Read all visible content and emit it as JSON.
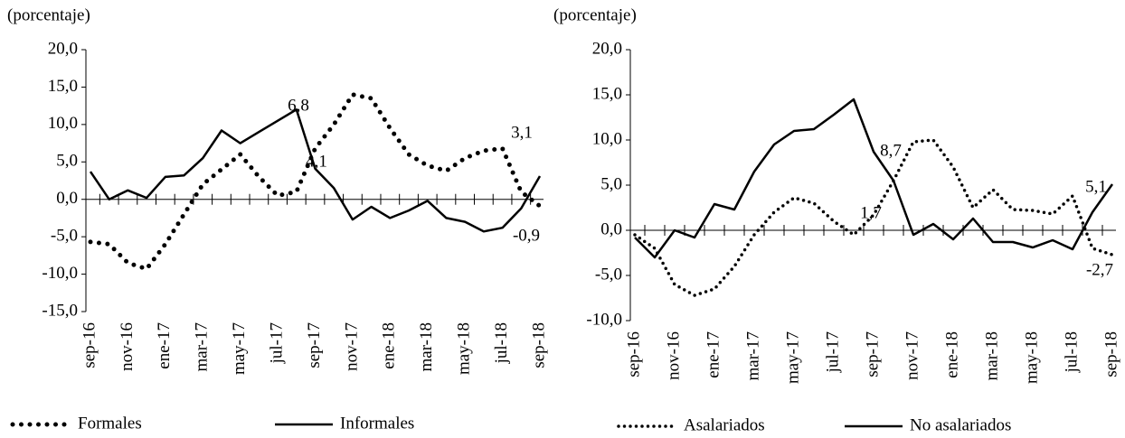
{
  "chart_data": [
    {
      "type": "line",
      "y_label": "(porcentaje)",
      "categories": [
        "sep-16",
        null,
        "nov-16",
        null,
        "ene-17",
        null,
        "mar-17",
        null,
        "may-17",
        null,
        "jul-17",
        null,
        "sep-17",
        null,
        "nov-17",
        null,
        "ene-18",
        null,
        "mar-18",
        null,
        "may-18",
        null,
        "jul-18",
        null,
        "sep-18"
      ],
      "ylim": [
        -15,
        20
      ],
      "yticks": [
        {
          "value": -15,
          "label": "-15,0"
        },
        {
          "value": -10,
          "label": "-10,0"
        },
        {
          "value": -5,
          "label": "-5,0"
        },
        {
          "value": 0,
          "label": "0,0"
        },
        {
          "value": 5,
          "label": "5,0"
        },
        {
          "value": 10,
          "label": "10,0"
        },
        {
          "value": 15,
          "label": "15,0"
        },
        {
          "value": 20,
          "label": "20,0"
        }
      ],
      "series": [
        {
          "name": "Formales",
          "color": "#000000",
          "dash": "dotted",
          "values": [
            -5.7,
            -6.0,
            -8.5,
            -9.3,
            -6.0,
            -2.0,
            2.0,
            4.0,
            6.0,
            3.0,
            0.5,
            1.0,
            6.8,
            10.0,
            14.0,
            13.5,
            9.5,
            6.0,
            4.5,
            3.8,
            5.5,
            6.5,
            6.8,
            1.0,
            -0.9
          ]
        },
        {
          "name": "Informales",
          "color": "#000000",
          "dash": "solid",
          "values": [
            3.7,
            0.0,
            1.2,
            0.2,
            3.0,
            3.2,
            5.5,
            9.2,
            7.5,
            9.0,
            10.5,
            12.0,
            4.1,
            1.5,
            -2.7,
            -1.0,
            -2.5,
            -1.5,
            -0.2,
            -2.5,
            -3.0,
            -4.3,
            -3.8,
            -1.2,
            3.1
          ]
        }
      ],
      "annotations": [
        "6,8",
        "4,1",
        "3,1",
        "-0,9"
      ]
    },
    {
      "type": "line",
      "y_label": "(porcentaje)",
      "categories": [
        "sep-16",
        null,
        "nov-16",
        null,
        "ene-17",
        null,
        "mar-17",
        null,
        "may-17",
        null,
        "jul-17",
        null,
        "sep-17",
        null,
        "nov-17",
        null,
        "ene-18",
        null,
        "mar-18",
        null,
        "may-18",
        null,
        "jul-18",
        null,
        "sep-18"
      ],
      "ylim": [
        -10,
        20
      ],
      "yticks": [
        {
          "value": -10,
          "label": "-10,0"
        },
        {
          "value": -5,
          "label": "-5,0"
        },
        {
          "value": 0,
          "label": "0,0"
        },
        {
          "value": 5,
          "label": "5,0"
        },
        {
          "value": 10,
          "label": "10,0"
        },
        {
          "value": 15,
          "label": "15,0"
        },
        {
          "value": 20,
          "label": "20,0"
        }
      ],
      "series": [
        {
          "name": "Asalariados",
          "color": "#000000",
          "dash": "dotted",
          "values": [
            -0.5,
            -2.0,
            -6.0,
            -7.2,
            -6.5,
            -4.0,
            -0.5,
            2.0,
            3.6,
            3.0,
            1.0,
            -0.5,
            1.7,
            5.5,
            9.8,
            10.0,
            7.0,
            2.5,
            4.5,
            2.3,
            2.2,
            1.8,
            3.8,
            -2.0,
            -2.7
          ]
        },
        {
          "name": "No asalariados",
          "color": "#000000",
          "dash": "solid",
          "values": [
            -0.8,
            -3.0,
            0.0,
            -0.8,
            2.9,
            2.3,
            6.5,
            9.5,
            11.0,
            11.2,
            12.8,
            14.5,
            8.7,
            5.5,
            -0.5,
            0.7,
            -1.0,
            1.3,
            -1.3,
            -1.3,
            -1.9,
            -1.1,
            -2.1,
            2.0,
            5.1
          ]
        }
      ],
      "annotations": [
        "8,7",
        "1,7",
        "5,1",
        "-2,7"
      ]
    }
  ]
}
